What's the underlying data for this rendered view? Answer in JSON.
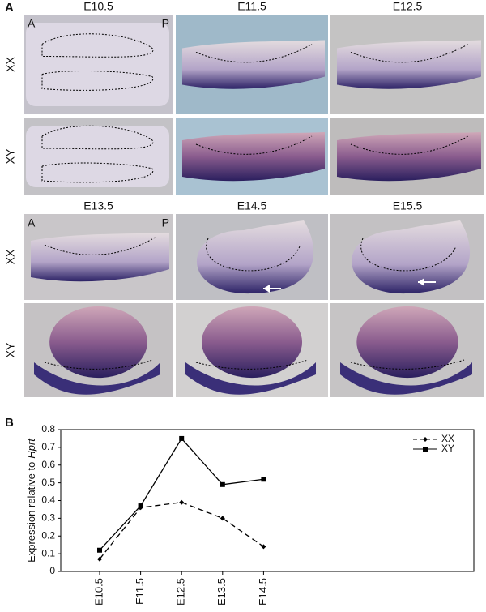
{
  "panel_a": {
    "label": "A",
    "blocks": [
      {
        "stages": [
          "E10.5",
          "E11.5",
          "E12.5"
        ],
        "rows": [
          "XX",
          "XY"
        ],
        "anterior": "A",
        "posterior": "P"
      },
      {
        "stages": [
          "E13.5",
          "E14.5",
          "E15.5"
        ],
        "rows": [
          "XX",
          "XY"
        ],
        "anterior": "A",
        "posterior": "P"
      }
    ]
  },
  "chart_data": {
    "type": "line",
    "panel_label": "B",
    "y_label": [
      "Expression relative to",
      "Hprt"
    ],
    "categories": [
      "E10.5",
      "E11.5",
      "E12.5",
      "E13.5",
      "E14.5"
    ],
    "series": [
      {
        "name": "XX",
        "color": "#000000",
        "dashed": true,
        "marker": "diamond",
        "values": [
          0.07,
          0.36,
          0.39,
          0.3,
          0.14
        ]
      },
      {
        "name": "XY",
        "color": "#000000",
        "dashed": false,
        "marker": "square",
        "values": [
          0.12,
          0.37,
          0.75,
          0.49,
          0.52
        ]
      }
    ],
    "ylim": [
      0,
      0.8
    ],
    "yticks": [
      0,
      0.1,
      0.2,
      0.3,
      0.4,
      0.5,
      0.6,
      0.7,
      0.8
    ],
    "legend": "upper right"
  }
}
